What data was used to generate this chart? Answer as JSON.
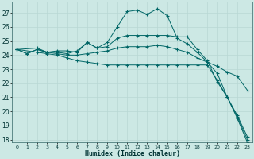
{
  "xlabel": "Humidex (Indice chaleur)",
  "ylabel": "",
  "bg_color": "#cce8e4",
  "line_color": "#006666",
  "grid_color": "#b8d8d4",
  "xlim": [
    -0.5,
    23.5
  ],
  "ylim": [
    17.8,
    27.8
  ],
  "yticks": [
    18,
    19,
    20,
    21,
    22,
    23,
    24,
    25,
    26,
    27
  ],
  "xticks": [
    0,
    1,
    2,
    3,
    4,
    5,
    6,
    7,
    8,
    9,
    10,
    11,
    12,
    13,
    14,
    15,
    16,
    17,
    18,
    19,
    20,
    21,
    22,
    23
  ],
  "line1_x": [
    0,
    1,
    2,
    3,
    4,
    5,
    6,
    7,
    8,
    9,
    10,
    11,
    12,
    13,
    14,
    15,
    16,
    17,
    18,
    19,
    20,
    21,
    22,
    23
  ],
  "line1_y": [
    24.4,
    24.1,
    24.4,
    24.2,
    24.2,
    24.1,
    24.3,
    24.9,
    24.5,
    24.9,
    26.0,
    27.1,
    27.2,
    26.9,
    27.3,
    26.8,
    25.2,
    24.8,
    24.2,
    23.5,
    22.7,
    21.0,
    19.5,
    17.8
  ],
  "line2_x": [
    0,
    1,
    2,
    3,
    4,
    5,
    6,
    7,
    8,
    9,
    10,
    11,
    12,
    13,
    14,
    15,
    16,
    17,
    18,
    19,
    20,
    21,
    22,
    23
  ],
  "line2_y": [
    24.4,
    24.1,
    24.4,
    24.2,
    24.1,
    24.0,
    24.0,
    24.1,
    24.2,
    24.3,
    24.5,
    24.6,
    24.6,
    24.6,
    24.7,
    24.6,
    24.4,
    24.2,
    23.8,
    23.5,
    23.2,
    22.8,
    22.5,
    21.5
  ],
  "line3_x": [
    0,
    2,
    3,
    4,
    5,
    6,
    7,
    8,
    9,
    10,
    11,
    12,
    13,
    14,
    15,
    16,
    17,
    18,
    19,
    20,
    21,
    22,
    23
  ],
  "line3_y": [
    24.4,
    24.2,
    24.1,
    24.0,
    23.8,
    23.6,
    23.5,
    23.4,
    23.3,
    23.3,
    23.3,
    23.3,
    23.3,
    23.3,
    23.3,
    23.3,
    23.3,
    23.3,
    23.3,
    22.2,
    21.0,
    19.7,
    18.2
  ],
  "line4_x": [
    0,
    2,
    3,
    4,
    5,
    6,
    7,
    8,
    9,
    10,
    11,
    12,
    13,
    14,
    15,
    16,
    17,
    18,
    19,
    20,
    21,
    22,
    23
  ],
  "line4_y": [
    24.4,
    24.5,
    24.2,
    24.3,
    24.3,
    24.2,
    24.9,
    24.5,
    24.6,
    25.2,
    25.4,
    25.4,
    25.4,
    25.4,
    25.4,
    25.3,
    25.3,
    24.4,
    23.6,
    22.1,
    21.0,
    19.6,
    18.0
  ]
}
